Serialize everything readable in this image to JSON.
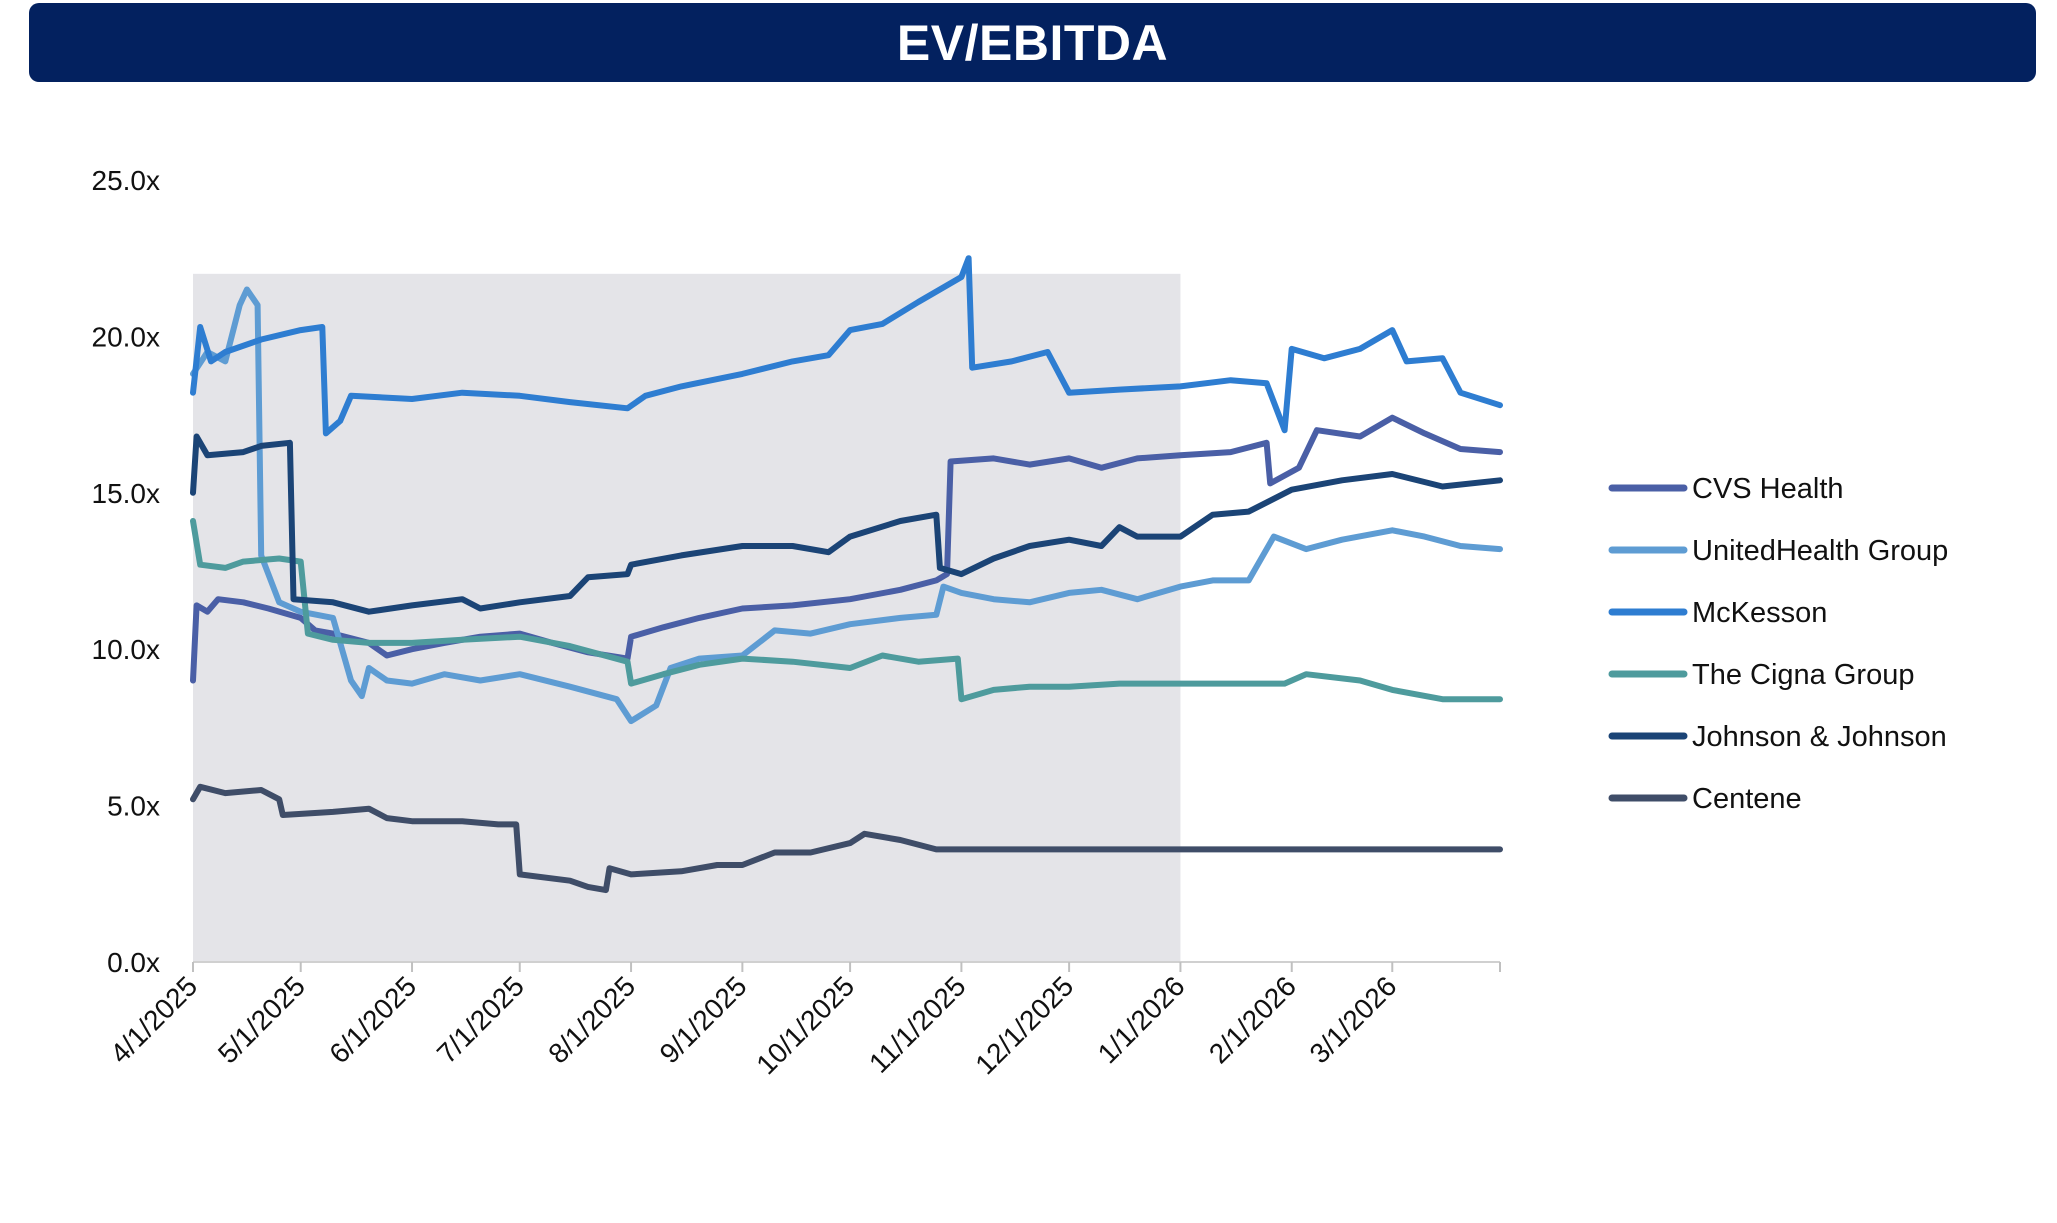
{
  "title": "EV/EBITDA",
  "chart_data": {
    "type": "line",
    "title": "EV/EBITDA",
    "xlabel": "",
    "ylabel": "",
    "x_range": [
      "4/1/2025",
      "3/31/2026"
    ],
    "ylim": [
      0,
      25
    ],
    "y_ticks": [
      "0.0x",
      "5.0x",
      "10.0x",
      "15.0x",
      "20.0x",
      "25.0x"
    ],
    "x_ticks": [
      "4/1/2025",
      "5/1/2025",
      "6/1/2025",
      "7/1/2025",
      "8/1/2025",
      "9/1/2025",
      "10/1/2025",
      "11/1/2025",
      "12/1/2025",
      "1/1/2026",
      "2/1/2026",
      "3/1/2026"
    ],
    "shaded_region": {
      "start": "4/1/2025",
      "end": "1/1/2026",
      "top": 22.0,
      "color": "#e4e4e8"
    },
    "grid": false,
    "legend_position": "right",
    "series": [
      {
        "name": "CVS Health",
        "color": "#4a5fa6",
        "points": [
          [
            "4/1/2025",
            9.0
          ],
          [
            "4/2/2025",
            11.4
          ],
          [
            "4/5/2025",
            11.2
          ],
          [
            "4/8/2025",
            11.6
          ],
          [
            "4/15/2025",
            11.5
          ],
          [
            "4/22/2025",
            11.3
          ],
          [
            "5/1/2025",
            11.0
          ],
          [
            "5/5/2025",
            10.6
          ],
          [
            "5/10/2025",
            10.5
          ],
          [
            "5/20/2025",
            10.2
          ],
          [
            "5/25/2025",
            9.8
          ],
          [
            "6/1/2025",
            10.0
          ],
          [
            "6/10/2025",
            10.2
          ],
          [
            "6/20/2025",
            10.4
          ],
          [
            "7/1/2025",
            10.5
          ],
          [
            "7/10/2025",
            10.2
          ],
          [
            "7/20/2025",
            9.9
          ],
          [
            "7/31/2025",
            9.7
          ],
          [
            "8/1/2025",
            10.4
          ],
          [
            "8/10/2025",
            10.7
          ],
          [
            "8/20/2025",
            11.0
          ],
          [
            "9/1/2025",
            11.3
          ],
          [
            "9/15/2025",
            11.4
          ],
          [
            "10/1/2025",
            11.6
          ],
          [
            "10/15/2025",
            11.9
          ],
          [
            "10/25/2025",
            12.2
          ],
          [
            "10/28/2025",
            12.4
          ],
          [
            "10/29/2025",
            16.0
          ],
          [
            "11/10/2025",
            16.1
          ],
          [
            "11/20/2025",
            15.9
          ],
          [
            "12/1/2025",
            16.1
          ],
          [
            "12/10/2025",
            15.8
          ],
          [
            "12/20/2025",
            16.1
          ],
          [
            "1/1/2026",
            16.2
          ],
          [
            "1/15/2026",
            16.3
          ],
          [
            "1/25/2026",
            16.6
          ],
          [
            "1/26/2026",
            15.3
          ],
          [
            "2/3/2026",
            15.8
          ],
          [
            "2/8/2026",
            17.0
          ],
          [
            "2/20/2026",
            16.8
          ],
          [
            "3/1/2026",
            17.4
          ],
          [
            "3/10/2026",
            16.9
          ],
          [
            "3/20/2026",
            16.4
          ],
          [
            "3/31/2026",
            16.3
          ]
        ]
      },
      {
        "name": "UnitedHealth Group",
        "color": "#5e9cd3",
        "points": [
          [
            "4/1/2025",
            18.8
          ],
          [
            "4/5/2025",
            19.5
          ],
          [
            "4/10/2025",
            19.2
          ],
          [
            "4/14/2025",
            21.0
          ],
          [
            "4/16/2025",
            21.5
          ],
          [
            "4/19/2025",
            21.0
          ],
          [
            "4/20/2025",
            13.0
          ],
          [
            "4/25/2025",
            11.5
          ],
          [
            "5/1/2025",
            11.2
          ],
          [
            "5/10/2025",
            11.0
          ],
          [
            "5/15/2025",
            9.0
          ],
          [
            "5/18/2025",
            8.5
          ],
          [
            "5/20/2025",
            9.4
          ],
          [
            "5/25/2025",
            9.0
          ],
          [
            "6/1/2025",
            8.9
          ],
          [
            "6/10/2025",
            9.2
          ],
          [
            "6/20/2025",
            9.0
          ],
          [
            "7/1/2025",
            9.2
          ],
          [
            "7/15/2025",
            8.8
          ],
          [
            "7/28/2025",
            8.4
          ],
          [
            "8/1/2025",
            7.7
          ],
          [
            "8/8/2025",
            8.2
          ],
          [
            "8/12/2025",
            9.4
          ],
          [
            "8/20/2025",
            9.7
          ],
          [
            "9/1/2025",
            9.8
          ],
          [
            "9/10/2025",
            10.6
          ],
          [
            "9/20/2025",
            10.5
          ],
          [
            "10/1/2025",
            10.8
          ],
          [
            "10/15/2025",
            11.0
          ],
          [
            "10/25/2025",
            11.1
          ],
          [
            "10/27/2025",
            12.0
          ],
          [
            "11/1/2025",
            11.8
          ],
          [
            "11/10/2025",
            11.6
          ],
          [
            "11/20/2025",
            11.5
          ],
          [
            "12/1/2025",
            11.8
          ],
          [
            "12/10/2025",
            11.9
          ],
          [
            "12/20/2025",
            11.6
          ],
          [
            "1/1/2026",
            12.0
          ],
          [
            "1/10/2026",
            12.2
          ],
          [
            "1/20/2026",
            12.2
          ],
          [
            "1/27/2026",
            13.6
          ],
          [
            "2/5/2026",
            13.2
          ],
          [
            "2/15/2026",
            13.5
          ],
          [
            "3/1/2026",
            13.8
          ],
          [
            "3/10/2026",
            13.6
          ],
          [
            "3/20/2026",
            13.3
          ],
          [
            "3/31/2026",
            13.2
          ]
        ]
      },
      {
        "name": "McKesson",
        "color": "#2e7dd1",
        "points": [
          [
            "4/1/2025",
            18.2
          ],
          [
            "4/3/2025",
            20.3
          ],
          [
            "4/6/2025",
            19.2
          ],
          [
            "4/10/2025",
            19.5
          ],
          [
            "4/20/2025",
            19.9
          ],
          [
            "5/1/2025",
            20.2
          ],
          [
            "5/7/2025",
            20.3
          ],
          [
            "5/8/2025",
            16.9
          ],
          [
            "5/12/2025",
            17.3
          ],
          [
            "5/15/2025",
            18.1
          ],
          [
            "6/1/2025",
            18.0
          ],
          [
            "6/15/2025",
            18.2
          ],
          [
            "7/1/2025",
            18.1
          ],
          [
            "7/15/2025",
            17.9
          ],
          [
            "7/31/2025",
            17.7
          ],
          [
            "8/5/2025",
            18.1
          ],
          [
            "8/15/2025",
            18.4
          ],
          [
            "9/1/2025",
            18.8
          ],
          [
            "9/15/2025",
            19.2
          ],
          [
            "9/25/2025",
            19.4
          ],
          [
            "10/1/2025",
            20.2
          ],
          [
            "10/10/2025",
            20.4
          ],
          [
            "10/20/2025",
            21.1
          ],
          [
            "11/1/2025",
            21.9
          ],
          [
            "11/3/2025",
            22.5
          ],
          [
            "11/4/2025",
            19.0
          ],
          [
            "11/15/2025",
            19.2
          ],
          [
            "11/25/2025",
            19.5
          ],
          [
            "12/1/2025",
            18.2
          ],
          [
            "12/15/2025",
            18.3
          ],
          [
            "1/1/2026",
            18.4
          ],
          [
            "1/15/2026",
            18.6
          ],
          [
            "1/25/2026",
            18.5
          ],
          [
            "1/30/2026",
            17.0
          ],
          [
            "2/1/2026",
            19.6
          ],
          [
            "2/10/2026",
            19.3
          ],
          [
            "2/20/2026",
            19.6
          ],
          [
            "3/1/2026",
            20.2
          ],
          [
            "3/5/2026",
            19.2
          ],
          [
            "3/15/2026",
            19.3
          ],
          [
            "3/20/2026",
            18.2
          ],
          [
            "3/31/2026",
            17.8
          ]
        ]
      },
      {
        "name": "The Cigna Group",
        "color": "#4e9b9d",
        "points": [
          [
            "4/1/2025",
            14.1
          ],
          [
            "4/3/2025",
            12.7
          ],
          [
            "4/10/2025",
            12.6
          ],
          [
            "4/15/2025",
            12.8
          ],
          [
            "4/25/2025",
            12.9
          ],
          [
            "5/1/2025",
            12.8
          ],
          [
            "5/3/2025",
            10.5
          ],
          [
            "5/10/2025",
            10.3
          ],
          [
            "5/20/2025",
            10.2
          ],
          [
            "6/1/2025",
            10.2
          ],
          [
            "6/15/2025",
            10.3
          ],
          [
            "7/1/2025",
            10.4
          ],
          [
            "7/15/2025",
            10.1
          ],
          [
            "7/31/2025",
            9.6
          ],
          [
            "8/1/2025",
            8.9
          ],
          [
            "8/10/2025",
            9.2
          ],
          [
            "8/20/2025",
            9.5
          ],
          [
            "9/1/2025",
            9.7
          ],
          [
            "9/15/2025",
            9.6
          ],
          [
            "10/1/2025",
            9.4
          ],
          [
            "10/10/2025",
            9.8
          ],
          [
            "10/20/2025",
            9.6
          ],
          [
            "10/31/2025",
            9.7
          ],
          [
            "11/1/2025",
            8.4
          ],
          [
            "11/10/2025",
            8.7
          ],
          [
            "11/20/2025",
            8.8
          ],
          [
            "12/1/2025",
            8.8
          ],
          [
            "12/15/2025",
            8.9
          ],
          [
            "1/1/2026",
            8.9
          ],
          [
            "1/15/2026",
            8.9
          ],
          [
            "1/30/2026",
            8.9
          ],
          [
            "2/5/2026",
            9.2
          ],
          [
            "2/20/2026",
            9.0
          ],
          [
            "3/1/2026",
            8.7
          ],
          [
            "3/15/2026",
            8.4
          ],
          [
            "3/31/2026",
            8.4
          ]
        ]
      },
      {
        "name": "Johnson & Johnson",
        "color": "#1b4476",
        "points": [
          [
            "4/1/2025",
            15.0
          ],
          [
            "4/2/2025",
            16.8
          ],
          [
            "4/5/2025",
            16.2
          ],
          [
            "4/15/2025",
            16.3
          ],
          [
            "4/20/2025",
            16.5
          ],
          [
            "4/28/2025",
            16.6
          ],
          [
            "4/29/2025",
            11.6
          ],
          [
            "5/10/2025",
            11.5
          ],
          [
            "5/20/2025",
            11.2
          ],
          [
            "6/1/2025",
            11.4
          ],
          [
            "6/15/2025",
            11.6
          ],
          [
            "6/20/2025",
            11.3
          ],
          [
            "7/1/2025",
            11.5
          ],
          [
            "7/15/2025",
            11.7
          ],
          [
            "7/20/2025",
            12.3
          ],
          [
            "7/31/2025",
            12.4
          ],
          [
            "8/1/2025",
            12.7
          ],
          [
            "8/15/2025",
            13.0
          ],
          [
            "9/1/2025",
            13.3
          ],
          [
            "9/15/2025",
            13.3
          ],
          [
            "9/25/2025",
            13.1
          ],
          [
            "10/1/2025",
            13.6
          ],
          [
            "10/15/2025",
            14.1
          ],
          [
            "10/25/2025",
            14.3
          ],
          [
            "10/26/2025",
            12.6
          ],
          [
            "11/1/2025",
            12.4
          ],
          [
            "11/10/2025",
            12.9
          ],
          [
            "11/20/2025",
            13.3
          ],
          [
            "12/1/2025",
            13.5
          ],
          [
            "12/10/2025",
            13.3
          ],
          [
            "12/15/2025",
            13.9
          ],
          [
            "12/20/2025",
            13.6
          ],
          [
            "1/1/2026",
            13.6
          ],
          [
            "1/10/2026",
            14.3
          ],
          [
            "1/20/2026",
            14.4
          ],
          [
            "2/1/2026",
            15.1
          ],
          [
            "2/15/2026",
            15.4
          ],
          [
            "3/1/2026",
            15.6
          ],
          [
            "3/15/2026",
            15.2
          ],
          [
            "3/31/2026",
            15.4
          ]
        ]
      },
      {
        "name": "Centene",
        "color": "#3f4d68",
        "points": [
          [
            "4/1/2025",
            5.2
          ],
          [
            "4/3/2025",
            5.6
          ],
          [
            "4/10/2025",
            5.4
          ],
          [
            "4/20/2025",
            5.5
          ],
          [
            "4/25/2025",
            5.2
          ],
          [
            "4/26/2025",
            4.7
          ],
          [
            "5/10/2025",
            4.8
          ],
          [
            "5/20/2025",
            4.9
          ],
          [
            "5/25/2025",
            4.6
          ],
          [
            "6/1/2025",
            4.5
          ],
          [
            "6/15/2025",
            4.5
          ],
          [
            "6/25/2025",
            4.4
          ],
          [
            "6/30/2025",
            4.4
          ],
          [
            "7/1/2025",
            2.8
          ],
          [
            "7/15/2025",
            2.6
          ],
          [
            "7/20/2025",
            2.4
          ],
          [
            "7/25/2025",
            2.3
          ],
          [
            "7/26/2025",
            3.0
          ],
          [
            "8/1/2025",
            2.8
          ],
          [
            "8/15/2025",
            2.9
          ],
          [
            "8/25/2025",
            3.1
          ],
          [
            "9/1/2025",
            3.1
          ],
          [
            "9/10/2025",
            3.5
          ],
          [
            "9/20/2025",
            3.5
          ],
          [
            "10/1/2025",
            3.8
          ],
          [
            "10/5/2025",
            4.1
          ],
          [
            "10/15/2025",
            3.9
          ],
          [
            "10/25/2025",
            3.6
          ],
          [
            "12/1/2025",
            3.6
          ],
          [
            "1/1/2026",
            3.6
          ],
          [
            "3/31/2026",
            3.6
          ]
        ]
      }
    ]
  }
}
